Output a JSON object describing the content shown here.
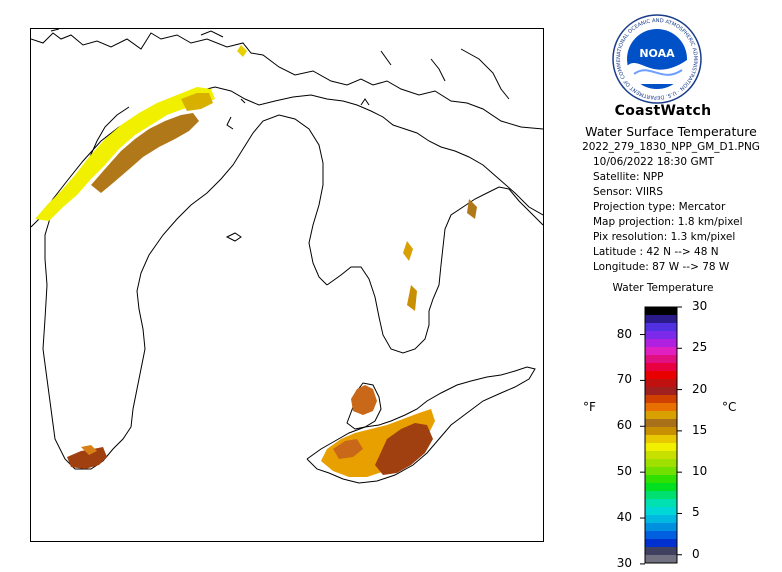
{
  "header": {
    "brand": "CoastWatch",
    "product": "Water Surface Temperature",
    "file": "2022_279_1830_NPP_GM_D1.PNG",
    "logo_text": "NOAA",
    "logo_ring_text": "NATIONAL OCEANIC AND ATMOSPHERIC ADMINISTRATION · U.S. DEPARTMENT OF COMMERCE ·"
  },
  "info": [
    {
      "key": "datetime",
      "text": "10/06/2022    18:30 GMT"
    },
    {
      "key": "satellite",
      "text": "Satellite: NPP"
    },
    {
      "key": "sensor",
      "text": "Sensor: VIIRS"
    },
    {
      "key": "projection",
      "text": "Projection type:  Mercator"
    },
    {
      "key": "mapproj",
      "text": "Map projection: 1.8 km/pixel"
    },
    {
      "key": "pixres",
      "text": "Pix resolution: 1.3 km/pixel"
    },
    {
      "key": "latitude",
      "text": "Latitude : 42 N --> 48 N"
    },
    {
      "key": "longitude",
      "text": "Longitude: 87 W --> 78 W"
    }
  ],
  "colorbar": {
    "title": "Water Temperature",
    "unit_f": "°F",
    "unit_c": "°C",
    "f_ticks": [
      {
        "label": "80",
        "value": 80
      },
      {
        "label": "70",
        "value": 70
      },
      {
        "label": "60",
        "value": 60
      },
      {
        "label": "50",
        "value": 50
      },
      {
        "label": "40",
        "value": 40
      },
      {
        "label": "30",
        "value": 30
      }
    ],
    "c_ticks": [
      {
        "label": "30",
        "value": 30
      },
      {
        "label": "25",
        "value": 25
      },
      {
        "label": "20",
        "value": 20
      },
      {
        "label": "15",
        "value": 15
      },
      {
        "label": "10",
        "value": 10
      },
      {
        "label": "5",
        "value": 5
      },
      {
        "label": "0",
        "value": 0
      }
    ],
    "range_c": [
      -1,
      30
    ],
    "colors_top_to_bottom": [
      "#000000",
      "#2a1a8a",
      "#5030e0",
      "#7a2ae8",
      "#b020e0",
      "#e020c0",
      "#e01080",
      "#e80040",
      "#e80000",
      "#c01010",
      "#a02020",
      "#d04000",
      "#e87000",
      "#d8a000",
      "#a87018",
      "#c89000",
      "#e8c800",
      "#f0f000",
      "#c8e000",
      "#a0e000",
      "#70e000",
      "#30e000",
      "#00e020",
      "#00e070",
      "#00e0b0",
      "#00d8d8",
      "#00b8e0",
      "#0090e0",
      "#0060e0",
      "#0030d0",
      "#404060",
      "#707080"
    ]
  },
  "map": {
    "land_color": "#ffffff",
    "outline_color": "#000000",
    "sst_colors": [
      "#f0f000",
      "#d8b000",
      "#b07818",
      "#e8a000",
      "#a04010",
      "#c86818"
    ]
  }
}
